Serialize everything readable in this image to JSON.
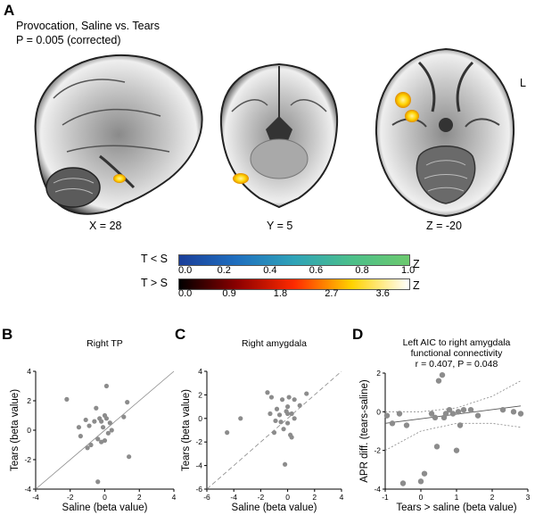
{
  "panel_a": {
    "letter": "A",
    "title": "Provocation, Saline vs. Tears",
    "pvalue": "P = 0.005 (corrected)",
    "orientation_label": "L",
    "slices": [
      {
        "label": "X = 28"
      },
      {
        "label": "Y = 5"
      },
      {
        "label": "Z = -20"
      }
    ],
    "colorbar_neg": {
      "label": "T < S",
      "unit": "Z",
      "ticks": [
        "0.0",
        "0.2",
        "0.4",
        "0.6",
        "0.8",
        "1.0"
      ],
      "colors": [
        "#1a3e99",
        "#1f6fbf",
        "#2fa3b8",
        "#4cbf8a",
        "#6cc96e"
      ]
    },
    "colorbar_pos": {
      "label": "T > S",
      "unit": "Z",
      "ticks": [
        "0.0",
        "0.9",
        "1.8",
        "2.7",
        "3.6"
      ],
      "colors": [
        "#000000",
        "#8b0000",
        "#ff2a00",
        "#ffd200",
        "#ffffff"
      ]
    }
  },
  "chart_data": [
    {
      "panel": "B",
      "type": "scatter",
      "title": "Right TP",
      "xlabel": "Saline (beta value)",
      "ylabel": "Tears (beta value)",
      "xlim": [
        -4,
        4
      ],
      "ylim": [
        -4,
        4
      ],
      "xticks": [
        "-4",
        "-2",
        "0",
        "2",
        "4"
      ],
      "yticks": [
        "-4",
        "-2",
        "0",
        "2",
        "4"
      ],
      "reference_line": "identity",
      "points": [
        [
          -2.2,
          2.1
        ],
        [
          -1.5,
          0.2
        ],
        [
          -1.4,
          -0.4
        ],
        [
          -1.1,
          0.7
        ],
        [
          -1.0,
          -1.2
        ],
        [
          -0.8,
          -1.0
        ],
        [
          -0.6,
          0.6
        ],
        [
          -0.5,
          1.5
        ],
        [
          -0.4,
          -0.6
        ],
        [
          -0.3,
          0.8
        ],
        [
          -0.2,
          0.6
        ],
        [
          -0.2,
          -0.8
        ],
        [
          -0.1,
          0.2
        ],
        [
          0.0,
          1.0
        ],
        [
          0.0,
          -0.7
        ],
        [
          0.1,
          0.8
        ],
        [
          -0.4,
          -3.5
        ],
        [
          0.3,
          0.5
        ],
        [
          0.1,
          3.0
        ],
        [
          0.4,
          0.0
        ],
        [
          1.1,
          0.9
        ],
        [
          1.3,
          1.9
        ],
        [
          1.4,
          -1.8
        ],
        [
          -0.9,
          0.3
        ],
        [
          0.2,
          -0.2
        ]
      ]
    },
    {
      "panel": "C",
      "type": "scatter",
      "title": "Right amygdala",
      "xlabel": "Saline (beta value)",
      "ylabel": "Tears (beta value)",
      "xlim": [
        -6,
        4
      ],
      "ylim": [
        -6,
        4
      ],
      "xticks": [
        "-6",
        "-4",
        "-2",
        "0",
        "2",
        "4"
      ],
      "yticks": [
        "-6",
        "-4",
        "-2",
        "0",
        "2",
        "4"
      ],
      "reference_line": "identity",
      "points": [
        [
          -4.5,
          -1.2
        ],
        [
          -3.5,
          0.0
        ],
        [
          -1.5,
          2.2
        ],
        [
          -1.2,
          1.8
        ],
        [
          -1.3,
          0.4
        ],
        [
          -0.9,
          -0.2
        ],
        [
          -0.8,
          0.8
        ],
        [
          -0.6,
          0.3
        ],
        [
          -0.5,
          -0.3
        ],
        [
          -0.4,
          1.6
        ],
        [
          -0.3,
          -0.9
        ],
        [
          -0.2,
          -3.9
        ],
        [
          -0.1,
          0.6
        ],
        [
          0.0,
          1.0
        ],
        [
          0.0,
          -0.4
        ],
        [
          0.1,
          1.8
        ],
        [
          0.2,
          -1.4
        ],
        [
          0.3,
          -1.6
        ],
        [
          0.5,
          0.0
        ],
        [
          0.5,
          1.6
        ],
        [
          0.3,
          0.4
        ],
        [
          0.9,
          1.1
        ],
        [
          1.4,
          2.1
        ],
        [
          -1.0,
          -1.2
        ],
        [
          0.0,
          0.4
        ]
      ]
    },
    {
      "panel": "D",
      "type": "scatter",
      "title": "Left AIC to right amygdala",
      "subtitle": "functional connectivity",
      "stats": "r = 0.407, P = 0.048",
      "xlabel": "Tears > saline (beta value)",
      "ylabel": "APR diff. (tears-saline)",
      "xlim": [
        -1,
        3
      ],
      "ylim": [
        -4,
        2
      ],
      "xticks": [
        "-1",
        "0",
        "1",
        "2",
        "3"
      ],
      "yticks": [
        "-4",
        "-2",
        "0",
        "2"
      ],
      "regression": {
        "x": [
          -1,
          2.8
        ],
        "y": [
          -0.6,
          0.3
        ]
      },
      "ci_upper": {
        "x": [
          -1,
          0.0,
          1.0,
          2.0,
          2.8
        ],
        "y": [
          0.0,
          0.0,
          0.2,
          0.8,
          1.6
        ]
      },
      "ci_lower": {
        "x": [
          -1,
          0.0,
          1.0,
          2.0,
          2.8
        ],
        "y": [
          -2.0,
          -1.0,
          -0.6,
          -0.6,
          -0.8
        ]
      },
      "points": [
        [
          -0.95,
          -0.2
        ],
        [
          -0.8,
          -0.6
        ],
        [
          -0.6,
          -0.1
        ],
        [
          -0.4,
          -0.7
        ],
        [
          -0.5,
          -3.7
        ],
        [
          0.0,
          -3.6
        ],
        [
          0.1,
          -3.2
        ],
        [
          0.3,
          -0.1
        ],
        [
          0.4,
          -0.3
        ],
        [
          0.45,
          -1.8
        ],
        [
          0.5,
          1.6
        ],
        [
          0.6,
          1.9
        ],
        [
          0.65,
          -0.3
        ],
        [
          0.7,
          -0.1
        ],
        [
          0.8,
          0.1
        ],
        [
          0.9,
          -0.1
        ],
        [
          1.0,
          -2.0
        ],
        [
          1.05,
          0.0
        ],
        [
          1.2,
          0.1
        ],
        [
          1.4,
          0.1
        ],
        [
          1.6,
          -0.2
        ],
        [
          2.3,
          0.1
        ],
        [
          2.6,
          0.0
        ],
        [
          2.8,
          -0.1
        ],
        [
          1.1,
          -0.7
        ]
      ]
    }
  ]
}
